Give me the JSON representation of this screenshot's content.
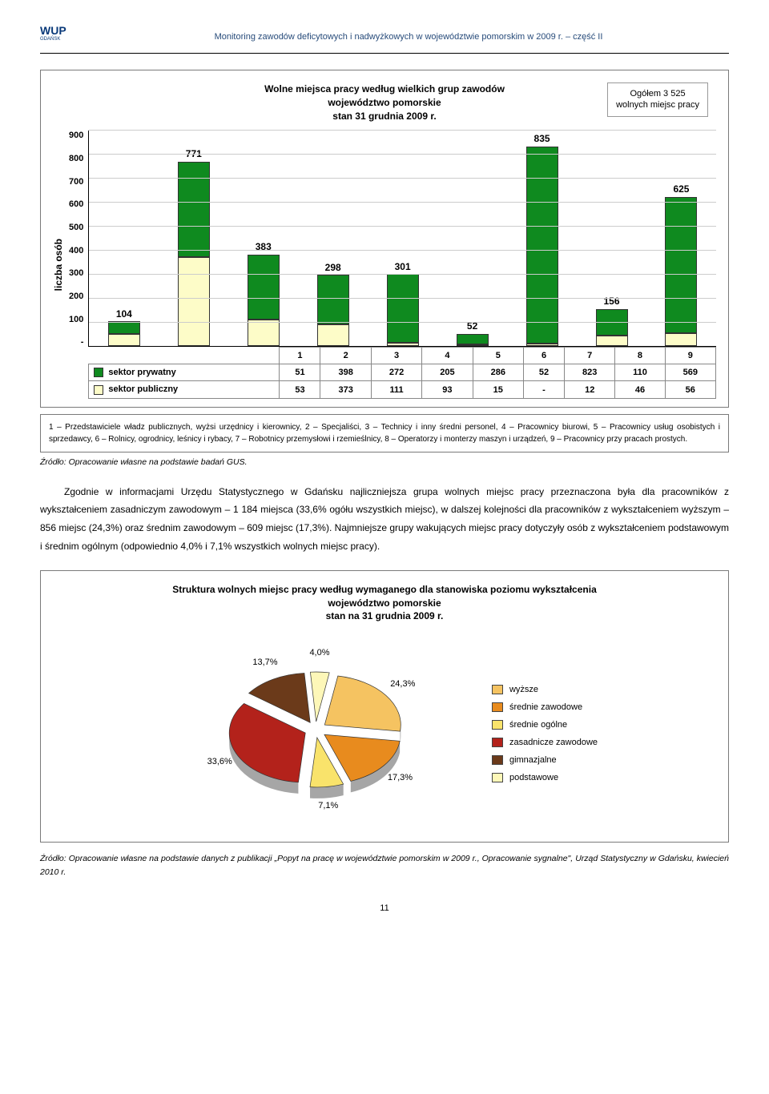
{
  "header": {
    "logo_main": "WUP",
    "logo_sub": "GDAŃSK",
    "title": "Monitoring zawodów deficytowych i nadwyżkowych w województwie pomorskim w 2009 r. – część II"
  },
  "bar_chart": {
    "title_line1": "Wolne miejsca pracy według wielkich grup zawodów",
    "title_line2": "województwo pomorskie",
    "title_line3": "stan 31 grudnia 2009 r.",
    "badge_line1": "Ogółem 3 525",
    "badge_line2": "wolnych miejsc pracy",
    "y_label": "liczba osób",
    "y_max": 900,
    "y_ticks": [
      "900",
      "800",
      "700",
      "600",
      "500",
      "400",
      "300",
      "200",
      "100",
      "-"
    ],
    "categories": [
      "1",
      "2",
      "3",
      "4",
      "5",
      "6",
      "7",
      "8",
      "9"
    ],
    "totals": [
      "104",
      "771",
      "383",
      "298",
      "301",
      "52",
      "835",
      "156",
      "625"
    ],
    "rows": [
      {
        "label": "sektor prywatny",
        "color": "#0f8a1f",
        "values": [
          "51",
          "398",
          "272",
          "205",
          "286",
          "52",
          "823",
          "110",
          "569"
        ]
      },
      {
        "label": "sektor publiczny",
        "color": "#fdfcc8",
        "values": [
          "53",
          "373",
          "111",
          "93",
          "15",
          "-",
          "12",
          "46",
          "56"
        ]
      }
    ]
  },
  "caption": "1 – Przedstawiciele władz publicznych, wyżsi urzędnicy i kierownicy, 2 – Specjaliści, 3 – Technicy i inny średni personel, 4 – Pracownicy biurowi, 5 – Pracownicy usług osobistych i sprzedawcy, 6 – Rolnicy, ogrodnicy, leśnicy i rybacy, 7 – Robotnicy przemysłowi i rzemieślnicy, 8 – Operatorzy i monterzy maszyn i urządzeń, 9 – Pracownicy przy pracach prostych.",
  "source1": "Źródło: Opracowanie własne na podstawie badań GUS.",
  "body": "Zgodnie w informacjami Urzędu Statystycznego w Gdańsku najliczniejsza grupa wolnych miejsc pracy przeznaczona była dla pracowników z wykształceniem zasadniczym zawodowym – 1 184 miejsca (33,6% ogółu wszystkich miejsc), w dalszej kolejności dla pracowników z wykształceniem wyższym – 856 miejsc (24,3%) oraz średnim zawodowym – 609 miejsc (17,3%). Najmniejsze grupy wakujących miejsc pracy dotyczyły osób z wykształceniem podstawowym i średnim ogólnym (odpowiednio 4,0% i 7,1% wszystkich wolnych miejsc pracy).",
  "pie_chart": {
    "title_line1": "Struktura wolnych miejsc pracy według wymaganego dla stanowiska poziomu wykształcenia",
    "title_line2": "województwo pomorskie",
    "title_line3": "stan na 31 grudnia 2009 r.",
    "slices": [
      {
        "label": "wyższe",
        "value": 24.3,
        "pct": "24,3%",
        "color": "#f5c361"
      },
      {
        "label": "średnie zawodowe",
        "value": 17.3,
        "pct": "17,3%",
        "color": "#e88b1e"
      },
      {
        "label": "średnie ogólne",
        "value": 7.1,
        "pct": "7,1%",
        "color": "#f9e36b"
      },
      {
        "label": "zasadnicze zawodowe",
        "value": 33.6,
        "pct": "33,6%",
        "color": "#b3221b"
      },
      {
        "label": "gimnazjalne",
        "value": 13.7,
        "pct": "13,7%",
        "color": "#6b3a1a"
      },
      {
        "label": "podstawowe",
        "value": 4.0,
        "pct": "4,0%",
        "color": "#fdf7b8"
      }
    ]
  },
  "source2": "Źródło: Opracowanie własne na podstawie danych z publikacji „Popyt na pracę w województwie pomorskim w 2009 r., Opracowanie sygnalne\", Urząd Statystyczny w Gdańsku, kwiecień 2010 r.",
  "page_number": "11"
}
